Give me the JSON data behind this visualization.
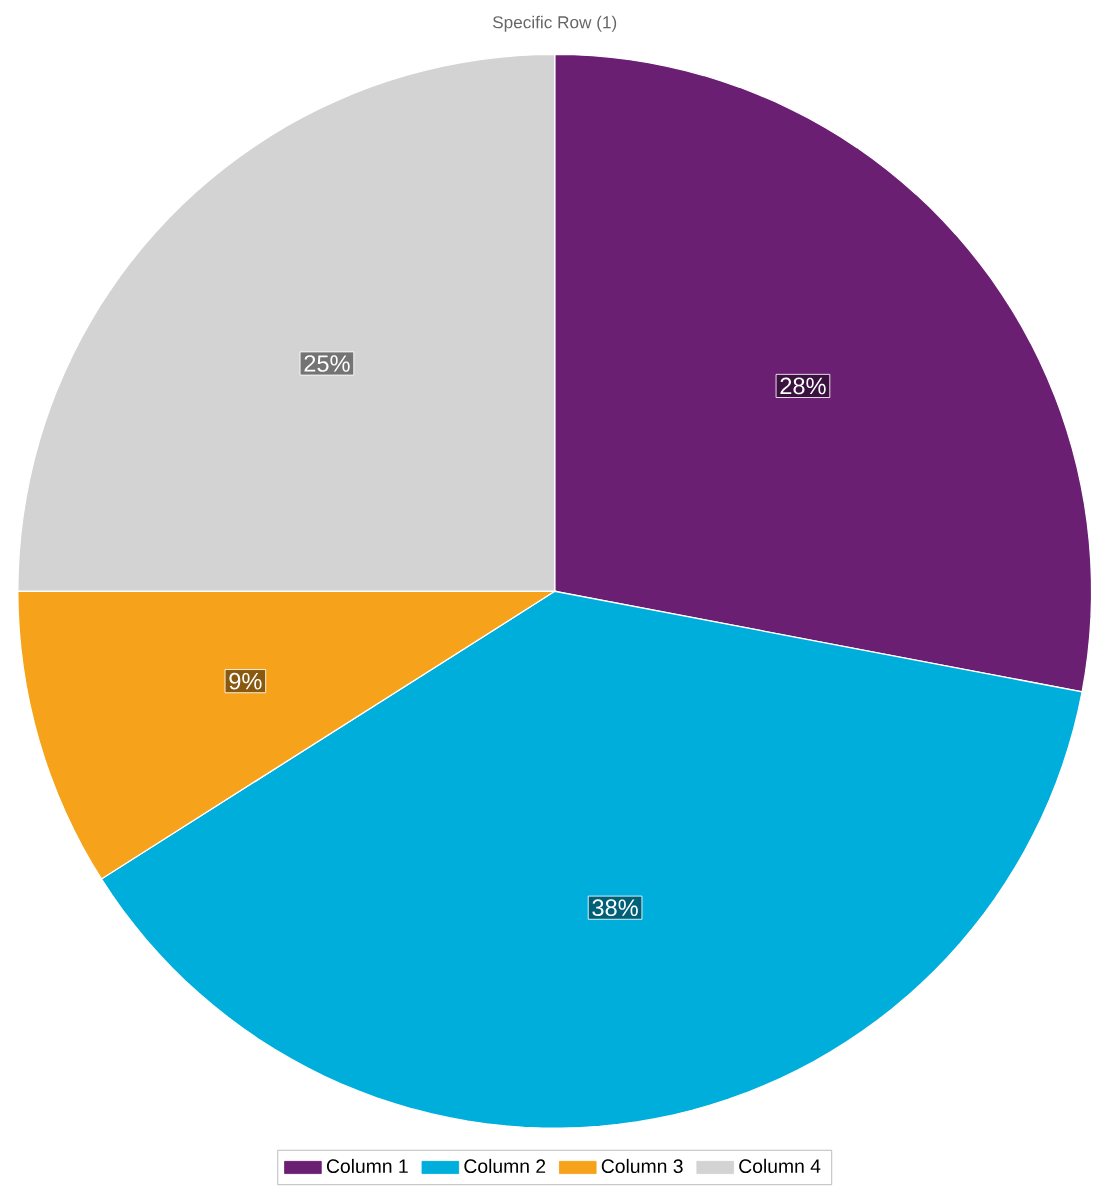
{
  "chart_data": {
    "type": "pie",
    "title": "Specific Row (1)",
    "categories": [
      "Column 1",
      "Column 2",
      "Column 3",
      "Column 4"
    ],
    "values": [
      28,
      38,
      9,
      25
    ],
    "value_labels": [
      "28%",
      "38%",
      "9%",
      "25%"
    ],
    "colors": [
      "#6b1f73",
      "#00aedb",
      "#f7a21b",
      "#d3d3d3"
    ],
    "legend": "bottom"
  }
}
